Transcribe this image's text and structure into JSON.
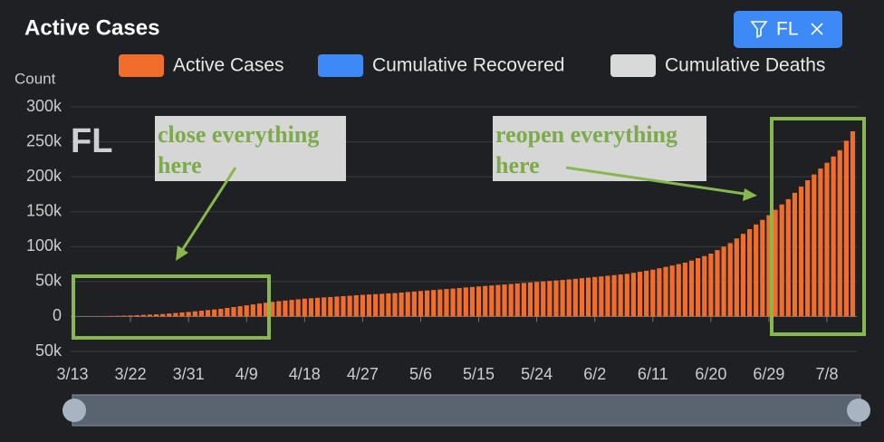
{
  "filter": {
    "label": "FL"
  },
  "chart_data": {
    "type": "bar",
    "title": "Active Cases",
    "y_label": "Count",
    "overlay_label": "FL",
    "legend": [
      {
        "name": "Active Cases",
        "color": "#f06d2c"
      },
      {
        "name": "Cumulative Recovered",
        "color": "#3d8af7"
      },
      {
        "name": "Cumulative Deaths",
        "color": "#d9d9d9"
      }
    ],
    "color": "#f06d2c",
    "categories": [
      "3/13",
      null,
      null,
      null,
      null,
      null,
      null,
      null,
      null,
      "3/22",
      null,
      null,
      null,
      null,
      null,
      null,
      null,
      null,
      "3/31",
      null,
      null,
      null,
      null,
      null,
      null,
      null,
      null,
      "4/9",
      null,
      null,
      null,
      null,
      null,
      null,
      null,
      null,
      "4/18",
      null,
      null,
      null,
      null,
      null,
      null,
      null,
      null,
      "4/27",
      null,
      null,
      null,
      null,
      null,
      null,
      null,
      null,
      "5/6",
      null,
      null,
      null,
      null,
      null,
      null,
      null,
      null,
      "5/15",
      null,
      null,
      null,
      null,
      null,
      null,
      null,
      null,
      "5/24",
      null,
      null,
      null,
      null,
      null,
      null,
      null,
      null,
      "6/2",
      null,
      null,
      null,
      null,
      null,
      null,
      null,
      null,
      "6/11",
      null,
      null,
      null,
      null,
      null,
      null,
      null,
      null,
      "6/20",
      null,
      null,
      null,
      null,
      null,
      null,
      null,
      null,
      "6/29",
      null,
      null,
      null,
      null,
      null,
      null,
      null,
      null,
      "7/8",
      null,
      null,
      null,
      null
    ],
    "values": [
      0,
      100,
      200,
      300,
      400,
      500,
      750,
      1000,
      1250,
      1500,
      1900,
      2300,
      2700,
      3100,
      3500,
      4250,
      5000,
      5750,
      6500,
      7400,
      8300,
      9200,
      10100,
      11000,
      12250,
      13500,
      14750,
      16000,
      17250,
      18500,
      19750,
      21000,
      21900,
      22800,
      23700,
      24600,
      25500,
      26100,
      26700,
      27300,
      27900,
      28500,
      29100,
      29700,
      30400,
      31000,
      31500,
      32000,
      32500,
      33000,
      33500,
      34250,
      35000,
      35750,
      36500,
      37200,
      37900,
      38600,
      39300,
      40000,
      40750,
      41500,
      42250,
      43000,
      43700,
      44400,
      45100,
      45800,
      46500,
      47250,
      48000,
      48750,
      49500,
      50200,
      50900,
      51600,
      52300,
      53000,
      53900,
      54800,
      55600,
      56500,
      57400,
      58300,
      59200,
      60100,
      61000,
      62500,
      64000,
      65500,
      67000,
      69000,
      71000,
      73000,
      75000,
      77000,
      80000,
      83500,
      86500,
      90000,
      95000,
      100000,
      105000,
      111700,
      118300,
      125000,
      131700,
      138300,
      145000,
      152700,
      160300,
      168000,
      177000,
      186000,
      195000,
      203300,
      211700,
      220000,
      229000,
      238000,
      251500,
      265000
    ],
    "ylim": [
      -50000,
      300000
    ],
    "yticks": [
      {
        "value": -50000,
        "label": "50k"
      },
      0,
      {
        "value": 50000,
        "label": "50k"
      },
      {
        "value": 100000,
        "label": "100k"
      },
      {
        "value": 150000,
        "label": "150k"
      },
      {
        "value": 200000,
        "label": "200k"
      },
      {
        "value": 250000,
        "label": "250k"
      },
      {
        "value": 300000,
        "label": "300k"
      }
    ],
    "grid": true,
    "annotations": [
      {
        "lines": [
          "close everything",
          "here"
        ]
      },
      {
        "lines": [
          "reopen everything",
          "here"
        ]
      }
    ]
  }
}
